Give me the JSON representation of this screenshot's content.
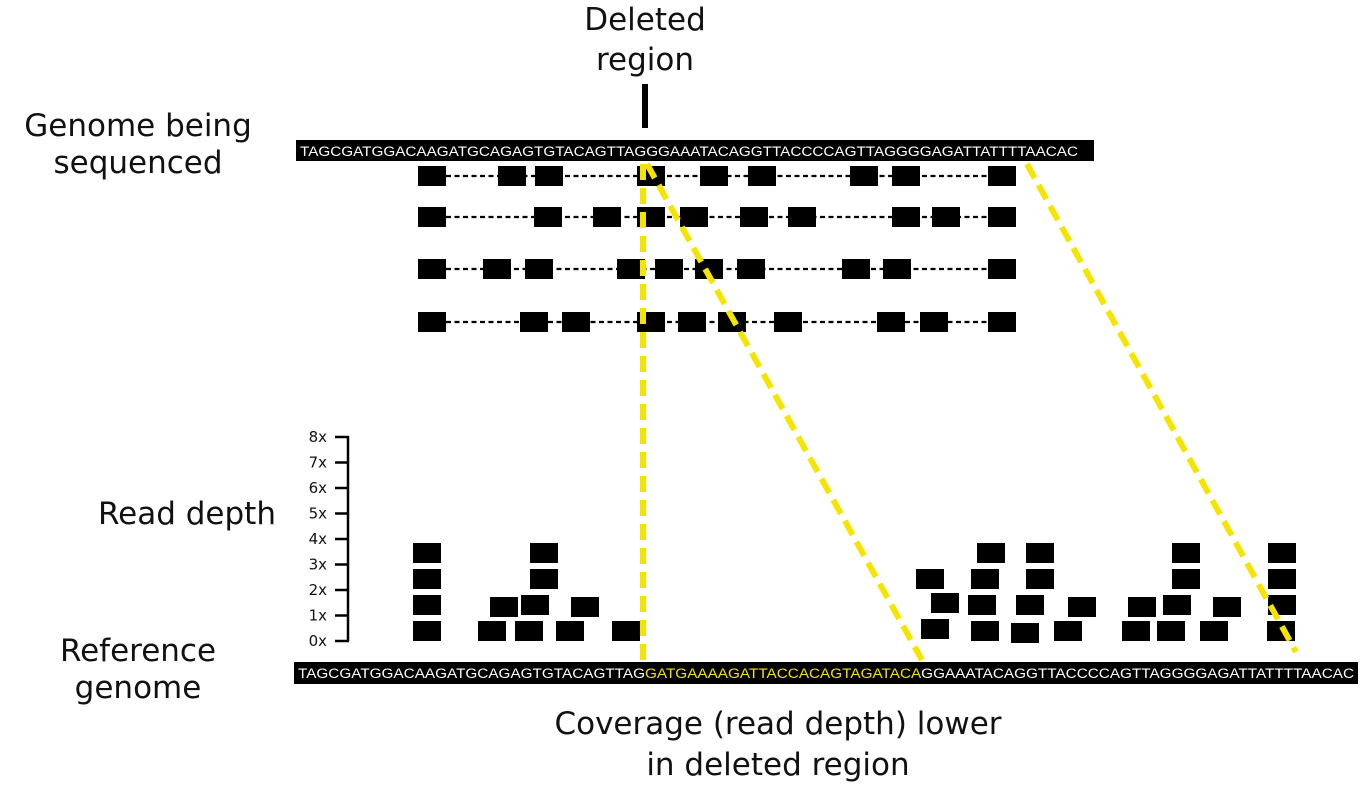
{
  "labels": {
    "deleted_region_line1": "Deleted",
    "deleted_region_line2": "region",
    "genome_sequenced_line1": "Genome being",
    "genome_sequenced_line2": "sequenced",
    "read_depth": "Read depth",
    "reference_line1": "Reference",
    "reference_line2": "genome",
    "caption_line1": "Coverage (read depth) lower",
    "caption_line2": "in deleted region"
  },
  "sequenced_genome": "TAGCGATGGACAAGATGCAGAGTGTACAGTTAGGGAAATACAGGTTACCCCAGTTAGGGGAGATTATTTTAACAC",
  "reference_genome": {
    "before": "TAGCGATGGACAAGATGCAGAGTGTACAGTTAG",
    "deleted": "GATGAAAAGATTACCACAGTAGATACA",
    "after": "GGAAATACAGGTTACCCCAGTTAGGGGAGATTATTTTAACAC"
  },
  "depth_axis": {
    "ticks": [
      "0x",
      "1x",
      "2x",
      "3x",
      "4x",
      "5x",
      "6x",
      "7x",
      "8x"
    ]
  },
  "colors": {
    "highlight": "#f5e400",
    "ink": "#000000",
    "background": "#ffffff"
  }
}
